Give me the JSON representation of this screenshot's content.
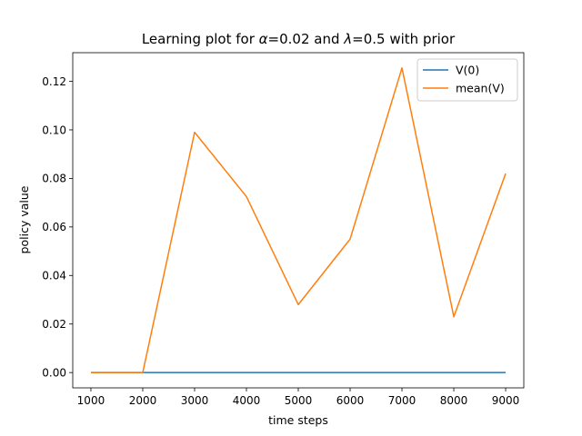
{
  "chart_data": {
    "type": "line",
    "title": "Learning plot for α=0.02 and λ=0.5 with  prior",
    "xlabel": "time steps",
    "ylabel": "policy value",
    "x": [
      1000,
      2000,
      3000,
      4000,
      5000,
      6000,
      7000,
      8000,
      9000
    ],
    "xlim": [
      650,
      9350
    ],
    "ylim": [
      -0.0063,
      0.1318
    ],
    "xticks": [
      1000,
      2000,
      3000,
      4000,
      5000,
      6000,
      7000,
      8000,
      9000
    ],
    "yticks": [
      0.0,
      0.02,
      0.04,
      0.06,
      0.08,
      0.1,
      0.12
    ],
    "xtick_labels": [
      "1000",
      "2000",
      "3000",
      "4000",
      "5000",
      "6000",
      "7000",
      "8000",
      "9000"
    ],
    "ytick_labels": [
      "0.00",
      "0.02",
      "0.04",
      "0.06",
      "0.08",
      "0.10",
      "0.12"
    ],
    "grid": false,
    "legend_position": "top-right",
    "series": [
      {
        "name": "V(0)",
        "color": "#1f77b4",
        "values": [
          0,
          0,
          0,
          0,
          0,
          0,
          0,
          0,
          0
        ]
      },
      {
        "name": "mean(V)",
        "color": "#ff7f0e",
        "values": [
          0,
          0,
          0.099,
          0.0725,
          0.028,
          0.055,
          0.1255,
          0.023,
          0.082
        ]
      }
    ]
  }
}
